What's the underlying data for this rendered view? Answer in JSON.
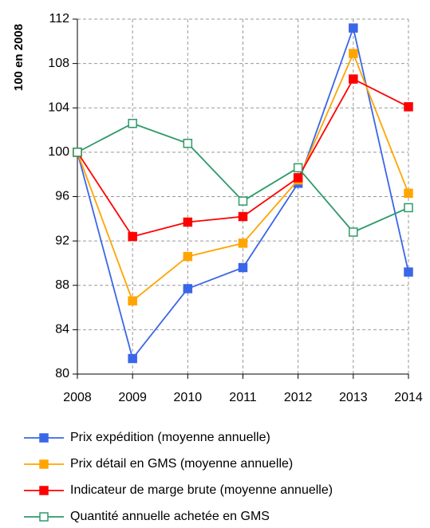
{
  "chart_data": {
    "type": "line",
    "y_label": "100 en 2008",
    "x": [
      2008,
      2009,
      2010,
      2011,
      2012,
      2013,
      2014
    ],
    "xlim": [
      2008,
      2014
    ],
    "xticks": [
      2008,
      2009,
      2010,
      2011,
      2012,
      2013,
      2014
    ],
    "ylim": [
      80,
      112
    ],
    "yticks": [
      80,
      84,
      88,
      92,
      96,
      100,
      104,
      108,
      112
    ],
    "grid": true,
    "series": [
      {
        "name": "Prix expédition (moyenne annuelle)",
        "color": "#3a66e8",
        "marker": "filled",
        "values": [
          100,
          81.4,
          87.7,
          89.6,
          97.2,
          111.2,
          89.2
        ]
      },
      {
        "name": "Prix détail en GMS (moyenne annuelle)",
        "color": "#ffa500",
        "marker": "filled",
        "values": [
          100,
          86.6,
          90.6,
          91.8,
          97.5,
          108.9,
          96.3
        ]
      },
      {
        "name": "Indicateur de marge brute (moyenne annuelle)",
        "color": "#ff0000",
        "marker": "filled",
        "values": [
          100,
          92.4,
          93.7,
          94.2,
          97.7,
          106.6,
          104.1
        ]
      },
      {
        "name": "Quantité annuelle achetée en GMS",
        "color": "#2e9a6a",
        "marker": "hollow",
        "values": [
          100,
          102.6,
          100.8,
          95.6,
          98.6,
          92.8,
          95.0
        ]
      }
    ]
  }
}
